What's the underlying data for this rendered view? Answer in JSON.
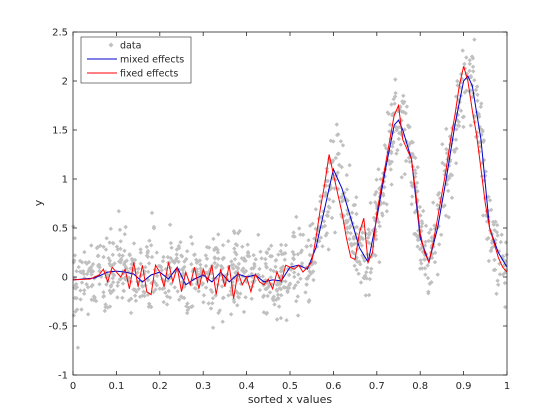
{
  "chart_data": {
    "type": "scatter",
    "xlabel": "sorted x values",
    "ylabel": "y",
    "xlim": [
      0,
      1
    ],
    "ylim": [
      -1,
      2.5
    ],
    "xticks": [
      "0",
      "0.1",
      "0.2",
      "0.3",
      "0.4",
      "0.5",
      "0.6",
      "0.7",
      "0.8",
      "0.9",
      "1"
    ],
    "yticks": [
      "-1",
      "-0.5",
      "0",
      "0.5",
      "1",
      "1.5",
      "2",
      "2.5"
    ],
    "grid": false,
    "legend_position": "top-left",
    "series": [
      {
        "name": "data",
        "kind": "markers",
        "color": "#c0c0c0",
        "marker": "diamond",
        "n_points": 1200,
        "noise_sd": 0.2
      },
      {
        "name": "mixed effects",
        "kind": "line",
        "color": "#0000cc"
      },
      {
        "name": "fixed effects",
        "kind": "line",
        "color": "#ff0000"
      }
    ],
    "mixed_effects_curve": {
      "x": [
        0,
        0.05,
        0.08,
        0.1,
        0.12,
        0.14,
        0.16,
        0.18,
        0.2,
        0.22,
        0.24,
        0.26,
        0.28,
        0.3,
        0.32,
        0.34,
        0.36,
        0.38,
        0.4,
        0.42,
        0.44,
        0.46,
        0.48,
        0.5,
        0.52,
        0.54,
        0.56,
        0.58,
        0.6,
        0.62,
        0.64,
        0.66,
        0.68,
        0.7,
        0.72,
        0.74,
        0.75,
        0.76,
        0.78,
        0.8,
        0.82,
        0.84,
        0.86,
        0.88,
        0.9,
        0.91,
        0.92,
        0.94,
        0.96,
        0.98,
        1.0
      ],
      "y": [
        -0.03,
        -0.01,
        0.05,
        0.06,
        0.05,
        0.03,
        -0.05,
        0.02,
        0.05,
        -0.02,
        0.1,
        -0.08,
        -0.02,
        0.02,
        -0.05,
        0.05,
        -0.05,
        0.03,
        0.0,
        0.02,
        -0.05,
        -0.03,
        -0.04,
        0.1,
        0.12,
        0.08,
        0.3,
        0.7,
        1.1,
        0.9,
        0.6,
        0.3,
        0.15,
        0.6,
        1.1,
        1.55,
        1.6,
        1.5,
        1.2,
        0.4,
        0.15,
        0.5,
        1.0,
        1.55,
        2.0,
        2.05,
        1.95,
        1.4,
        0.5,
        0.25,
        0.1
      ]
    },
    "fixed_effects_curve": {
      "x": [
        0,
        0.04,
        0.06,
        0.07,
        0.08,
        0.09,
        0.1,
        0.11,
        0.12,
        0.13,
        0.14,
        0.15,
        0.16,
        0.17,
        0.18,
        0.19,
        0.2,
        0.21,
        0.22,
        0.23,
        0.24,
        0.25,
        0.26,
        0.27,
        0.28,
        0.29,
        0.3,
        0.31,
        0.32,
        0.33,
        0.34,
        0.35,
        0.36,
        0.37,
        0.38,
        0.39,
        0.4,
        0.41,
        0.42,
        0.43,
        0.44,
        0.45,
        0.46,
        0.47,
        0.48,
        0.49,
        0.5,
        0.51,
        0.52,
        0.53,
        0.54,
        0.55,
        0.56,
        0.57,
        0.58,
        0.59,
        0.6,
        0.61,
        0.62,
        0.63,
        0.64,
        0.65,
        0.66,
        0.67,
        0.68,
        0.69,
        0.7,
        0.71,
        0.72,
        0.73,
        0.74,
        0.75,
        0.76,
        0.77,
        0.78,
        0.79,
        0.8,
        0.81,
        0.82,
        0.83,
        0.84,
        0.85,
        0.86,
        0.87,
        0.88,
        0.89,
        0.9,
        0.91,
        0.92,
        0.93,
        0.94,
        0.95,
        0.96,
        0.97,
        0.98,
        0.99,
        1.0
      ],
      "y": [
        -0.03,
        -0.02,
        0.02,
        0.08,
        -0.05,
        0.1,
        0.05,
        0.0,
        0.08,
        -0.12,
        0.15,
        -0.1,
        0.12,
        -0.15,
        -0.18,
        0.12,
        0.05,
        -0.1,
        0.15,
        -0.05,
        0.1,
        -0.15,
        0.05,
        -0.08,
        0.1,
        -0.12,
        0.08,
        -0.05,
        0.12,
        -0.18,
        0.08,
        -0.1,
        0.12,
        -0.22,
        0.05,
        -0.08,
        0.0,
        -0.15,
        0.03,
        -0.05,
        -0.08,
        -0.02,
        -0.12,
        0.05,
        -0.05,
        0.12,
        0.1,
        0.08,
        0.12,
        0.05,
        0.1,
        0.15,
        0.4,
        0.7,
        0.95,
        1.25,
        1.05,
        0.85,
        0.65,
        0.4,
        0.2,
        0.18,
        0.45,
        0.6,
        0.15,
        0.25,
        0.65,
        0.9,
        1.15,
        1.4,
        1.65,
        1.75,
        1.4,
        1.3,
        1.2,
        0.85,
        0.45,
        0.25,
        0.15,
        0.35,
        0.6,
        0.85,
        1.1,
        1.4,
        1.65,
        1.95,
        2.15,
        2.0,
        1.7,
        1.45,
        1.1,
        0.75,
        0.5,
        0.35,
        0.2,
        0.1,
        0.05
      ]
    }
  },
  "legend": {
    "data_label": "data",
    "mixed_label": "mixed effects",
    "fixed_label": "fixed effects"
  }
}
